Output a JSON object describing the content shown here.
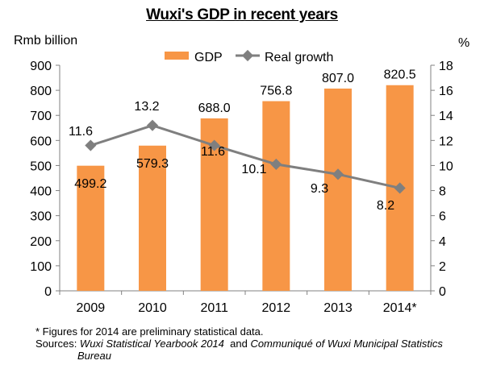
{
  "title": "Wuxi's GDP in recent years",
  "chart_data": {
    "type": "bar",
    "title": "Wuxi's GDP in recent years",
    "categories": [
      "2009",
      "2010",
      "2011",
      "2012",
      "2013",
      "2014*"
    ],
    "series": [
      {
        "name": "GDP",
        "kind": "bar",
        "axis": "left",
        "values": [
          499.2,
          579.3,
          688.0,
          756.8,
          807.0,
          820.5
        ],
        "labels": [
          "499.2",
          "579.3",
          "688.0",
          "756.8",
          "807.0",
          "820.5"
        ],
        "color": "#F79646"
      },
      {
        "name": "Real growth",
        "kind": "line",
        "axis": "right",
        "values": [
          11.6,
          13.2,
          11.6,
          10.1,
          9.3,
          8.2
        ],
        "labels": [
          "11.6",
          "13.2",
          "11.6",
          "10.1",
          "9.3",
          "8.2"
        ],
        "color": "#7F7F7F"
      }
    ],
    "ylabel_left": "Rmb billion",
    "ylabel_right": "%",
    "ylim_left": [
      0,
      900
    ],
    "ylim_right": [
      0,
      18
    ],
    "yticks_left": [
      "0",
      "100",
      "200",
      "300",
      "400",
      "500",
      "600",
      "700",
      "800",
      "900"
    ],
    "yticks_right": [
      "0",
      "2",
      "4",
      "6",
      "8",
      "10",
      "12",
      "14",
      "16",
      "18"
    ],
    "grid": false,
    "legend_position": "top"
  },
  "notes": {
    "line1": "* Figures for 2014 are preliminary statistical data.",
    "sources_prefix": "Sources: ",
    "source1": "Wuxi Statistical Yearbook 2014",
    "sources_and": "  and ",
    "source2_part1": "Communiqué of Wuxi Municipal Statistics",
    "source2_part2": "Bureau"
  }
}
